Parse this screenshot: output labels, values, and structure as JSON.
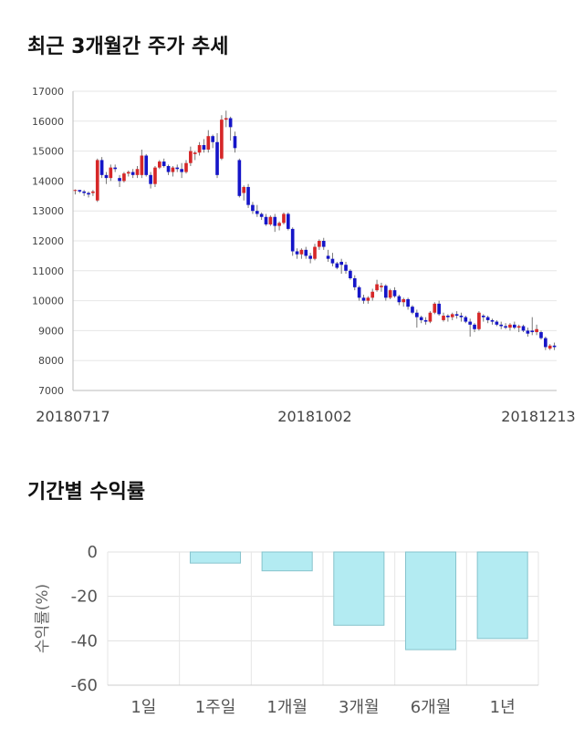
{
  "candle_section": {
    "title": "최근 3개월간 주가 추세",
    "chart_data": {
      "type": "candlestick",
      "y_ticks": [
        "17000",
        "16000",
        "15000",
        "14000",
        "13000",
        "12000",
        "11000",
        "10000",
        "9000",
        "8000",
        "7000"
      ],
      "ylim": [
        7000,
        17000
      ],
      "x_labels": [
        {
          "label": "20180717",
          "index": 0
        },
        {
          "label": "20181002",
          "index": 54
        },
        {
          "label": "20181213",
          "index": 105
        }
      ],
      "colors": {
        "up": "#d62728",
        "down": "#1515c8",
        "wick": "#777777"
      },
      "candles": [
        [
          13700,
          13720,
          13550,
          13700
        ],
        [
          13700,
          13700,
          13600,
          13650
        ],
        [
          13650,
          13700,
          13500,
          13600
        ],
        [
          13600,
          13650,
          13450,
          13550
        ],
        [
          13600,
          13700,
          13500,
          13650
        ],
        [
          13350,
          14750,
          13300,
          14700
        ],
        [
          14700,
          14800,
          14100,
          14200
        ],
        [
          14200,
          14300,
          13900,
          14100
        ],
        [
          14100,
          14550,
          14000,
          14450
        ],
        [
          14450,
          14550,
          14300,
          14400
        ],
        [
          14100,
          14200,
          13800,
          14000
        ],
        [
          14000,
          14300,
          13950,
          14250
        ],
        [
          14250,
          14350,
          14150,
          14300
        ],
        [
          14300,
          14400,
          14100,
          14200
        ],
        [
          14200,
          14500,
          14100,
          14400
        ],
        [
          14200,
          15050,
          14100,
          14850
        ],
        [
          14850,
          14900,
          14150,
          14200
        ],
        [
          14200,
          14300,
          13750,
          13900
        ],
        [
          13900,
          14500,
          13800,
          14450
        ],
        [
          14450,
          14700,
          14400,
          14650
        ],
        [
          14650,
          14750,
          14450,
          14500
        ],
        [
          14500,
          14550,
          14200,
          14300
        ],
        [
          14300,
          14500,
          14150,
          14450
        ],
        [
          14450,
          14550,
          14300,
          14400
        ],
        [
          14400,
          14600,
          14100,
          14300
        ],
        [
          14300,
          14700,
          14250,
          14600
        ],
        [
          14600,
          15150,
          14500,
          15000
        ],
        [
          14900,
          15000,
          14700,
          14950
        ],
        [
          14950,
          15300,
          14850,
          15200
        ],
        [
          15200,
          15400,
          14950,
          15050
        ],
        [
          15050,
          15700,
          14950,
          15500
        ],
        [
          15500,
          15550,
          15100,
          15300
        ],
        [
          15300,
          15600,
          14100,
          14200
        ],
        [
          14750,
          16200,
          14700,
          16050
        ],
        [
          16050,
          16350,
          15800,
          16100
        ],
        [
          16100,
          16150,
          15350,
          15800
        ],
        [
          15500,
          15650,
          14950,
          15100
        ],
        [
          14700,
          14750,
          13450,
          13500
        ],
        [
          13600,
          13850,
          13350,
          13800
        ],
        [
          13800,
          13900,
          13100,
          13200
        ],
        [
          13200,
          13300,
          12900,
          13000
        ],
        [
          13000,
          13200,
          12800,
          12900
        ],
        [
          12900,
          12950,
          12700,
          12800
        ],
        [
          12800,
          12900,
          12500,
          12550
        ],
        [
          12550,
          12850,
          12500,
          12800
        ],
        [
          12800,
          12900,
          12300,
          12500
        ],
        [
          12500,
          12650,
          12350,
          12600
        ],
        [
          12600,
          12950,
          12550,
          12900
        ],
        [
          12900,
          12950,
          12350,
          12400
        ],
        [
          12400,
          12450,
          11500,
          11650
        ],
        [
          11650,
          11750,
          11400,
          11550
        ],
        [
          11550,
          11750,
          11400,
          11700
        ],
        [
          11700,
          11800,
          11400,
          11500
        ],
        [
          11500,
          11600,
          11250,
          11400
        ],
        [
          11400,
          11900,
          11350,
          11800
        ],
        [
          11800,
          12050,
          11700,
          12000
        ],
        [
          12000,
          12100,
          11700,
          11800
        ],
        [
          11500,
          11700,
          11300,
          11400
        ],
        [
          11400,
          11600,
          11150,
          11250
        ],
        [
          11250,
          11300,
          11050,
          11100
        ],
        [
          11300,
          11400,
          10900,
          11200
        ],
        [
          11200,
          11300,
          10900,
          11000
        ],
        [
          11000,
          11050,
          10700,
          10750
        ],
        [
          10750,
          10850,
          10350,
          10450
        ],
        [
          10450,
          10500,
          10000,
          10100
        ],
        [
          10100,
          10200,
          9900,
          10000
        ],
        [
          10000,
          10150,
          9900,
          10100
        ],
        [
          10100,
          10400,
          10000,
          10300
        ],
        [
          10350,
          10700,
          10300,
          10550
        ],
        [
          10450,
          10600,
          10300,
          10500
        ],
        [
          10500,
          10550,
          10000,
          10100
        ],
        [
          10100,
          10400,
          10050,
          10350
        ],
        [
          10350,
          10450,
          10100,
          10150
        ],
        [
          10150,
          10200,
          9850,
          9950
        ],
        [
          9950,
          10100,
          9800,
          10050
        ],
        [
          10050,
          10100,
          9700,
          9800
        ],
        [
          9800,
          9850,
          9550,
          9600
        ],
        [
          9600,
          9700,
          9100,
          9450
        ],
        [
          9450,
          9500,
          9250,
          9350
        ],
        [
          9350,
          9450,
          9200,
          9300
        ],
        [
          9300,
          9650,
          9250,
          9600
        ],
        [
          9600,
          9950,
          9550,
          9900
        ],
        [
          9900,
          10000,
          9500,
          9550
        ],
        [
          9350,
          9600,
          9300,
          9500
        ],
        [
          9500,
          9550,
          9300,
          9450
        ],
        [
          9450,
          9600,
          9350,
          9550
        ],
        [
          9550,
          9650,
          9400,
          9500
        ],
        [
          9500,
          9600,
          9300,
          9450
        ],
        [
          9450,
          9500,
          9250,
          9300
        ],
        [
          9300,
          9400,
          8800,
          9200
        ],
        [
          9200,
          9250,
          8950,
          9050
        ],
        [
          9050,
          9650,
          9000,
          9600
        ],
        [
          9500,
          9550,
          9300,
          9450
        ],
        [
          9450,
          9500,
          9250,
          9350
        ],
        [
          9350,
          9400,
          9200,
          9300
        ],
        [
          9300,
          9350,
          9150,
          9200
        ],
        [
          9200,
          9300,
          9050,
          9150
        ],
        [
          9150,
          9250,
          9050,
          9100
        ],
        [
          9100,
          9250,
          9000,
          9200
        ],
        [
          9200,
          9300,
          9050,
          9100
        ],
        [
          9100,
          9200,
          8950,
          9150
        ],
        [
          9150,
          9200,
          8950,
          9000
        ],
        [
          9000,
          9100,
          8800,
          8900
        ],
        [
          9000,
          9450,
          8850,
          8950
        ],
        [
          8950,
          9200,
          8850,
          9050
        ],
        [
          8950,
          9000,
          8700,
          8750
        ],
        [
          8750,
          8800,
          8350,
          8450
        ],
        [
          8400,
          8550,
          8350,
          8500
        ],
        [
          8500,
          8600,
          8350,
          8450
        ]
      ]
    }
  },
  "return_section": {
    "title": "기간별 수익률",
    "chart_data": {
      "type": "bar",
      "categories": [
        "1일",
        "1주일",
        "1개월",
        "3개월",
        "6개월",
        "1년"
      ],
      "values": [
        0,
        -5,
        -8.5,
        -33,
        -44,
        -39
      ],
      "ylabel": "수익률(%)",
      "y_ticks": [
        "0",
        "-20",
        "-40",
        "-60"
      ],
      "ylim": [
        -60,
        0
      ],
      "colors": {
        "bar_fill": "#b3ebf2",
        "bar_stroke": "#86c3cc"
      }
    }
  }
}
